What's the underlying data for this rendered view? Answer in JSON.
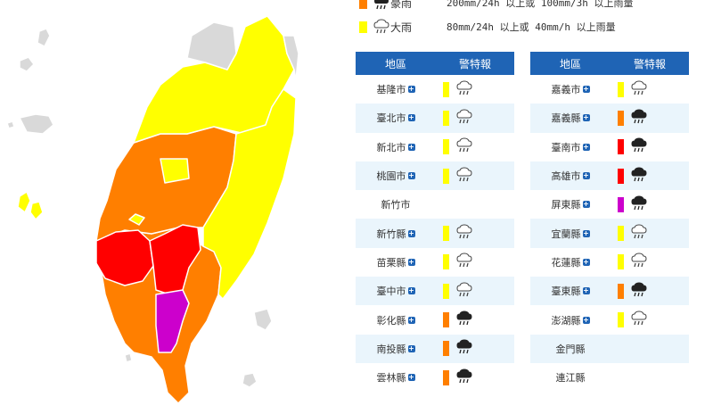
{
  "colors": {
    "header": "#1f64b5",
    "heavy_rain": "#ff7f00",
    "rain": "#ffff00",
    "torrential": "#ff0000",
    "extreme": "#cc00cc",
    "none": "#d9d9d9"
  },
  "legend": [
    {
      "label": "豪雨",
      "desc": "200mm/24h 以上或 100mm/3h 以上雨量",
      "level": "heavy_rain",
      "icon": "heavy-rain-icon"
    },
    {
      "label": "大雨",
      "desc": "80mm/24h 以上或 40mm/h 以上雨量",
      "level": "rain",
      "icon": "rain-icon"
    }
  ],
  "table_headers": {
    "region": "地區",
    "warning": "警特報"
  },
  "left_table": [
    {
      "name": "基隆市",
      "level": "rain",
      "icon": "rain-icon"
    },
    {
      "name": "臺北市",
      "level": "rain",
      "icon": "rain-icon"
    },
    {
      "name": "新北市",
      "level": "rain",
      "icon": "rain-icon"
    },
    {
      "name": "桃園市",
      "level": "rain",
      "icon": "rain-icon"
    },
    {
      "name": "新竹市",
      "level": "none",
      "icon": ""
    },
    {
      "name": "新竹縣",
      "level": "rain",
      "icon": "rain-icon"
    },
    {
      "name": "苗栗縣",
      "level": "rain",
      "icon": "rain-icon"
    },
    {
      "name": "臺中市",
      "level": "rain",
      "icon": "rain-icon"
    },
    {
      "name": "彰化縣",
      "level": "heavy_rain",
      "icon": "heavy-rain-icon"
    },
    {
      "name": "南投縣",
      "level": "heavy_rain",
      "icon": "heavy-rain-icon"
    },
    {
      "name": "雲林縣",
      "level": "heavy_rain",
      "icon": "heavy-rain-icon"
    }
  ],
  "right_table": [
    {
      "name": "嘉義市",
      "level": "rain",
      "icon": "rain-icon"
    },
    {
      "name": "嘉義縣",
      "level": "heavy_rain",
      "icon": "heavy-rain-icon"
    },
    {
      "name": "臺南市",
      "level": "torrential",
      "icon": "heavy-rain-icon"
    },
    {
      "name": "高雄市",
      "level": "torrential",
      "icon": "heavy-rain-icon"
    },
    {
      "name": "屏東縣",
      "level": "extreme",
      "icon": "heavy-rain-icon"
    },
    {
      "name": "宜蘭縣",
      "level": "rain",
      "icon": "rain-icon"
    },
    {
      "name": "花蓮縣",
      "level": "rain",
      "icon": "rain-icon"
    },
    {
      "name": "臺東縣",
      "level": "heavy_rain",
      "icon": "heavy-rain-icon"
    },
    {
      "name": "澎湖縣",
      "level": "rain",
      "icon": "rain-icon"
    },
    {
      "name": "金門縣",
      "level": "none",
      "icon": ""
    },
    {
      "name": "連江縣",
      "level": "none",
      "icon": ""
    }
  ]
}
